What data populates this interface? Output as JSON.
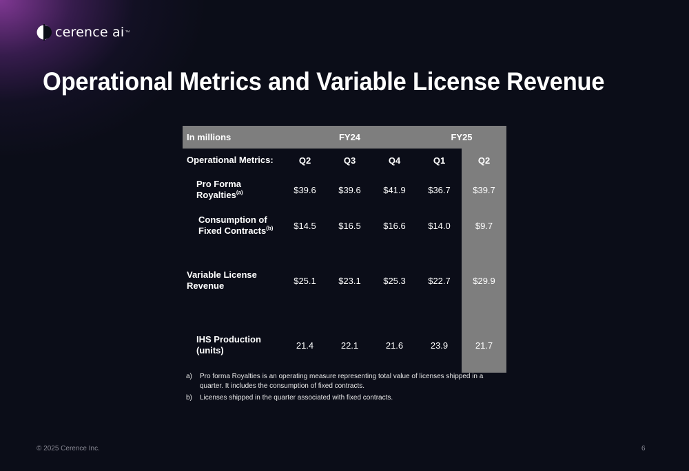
{
  "brand": {
    "name": "cerence ai",
    "tm": "™"
  },
  "title": "Operational Metrics and Variable License Revenue",
  "table": {
    "header": {
      "lead": "In millions",
      "fy24": "FY24",
      "fy25": "FY25"
    },
    "subheader": {
      "label": "Operational Metrics:",
      "cols": [
        "Q2",
        "Q3",
        "Q4",
        "Q1",
        "Q2"
      ]
    },
    "rows": [
      {
        "label_line1": "Pro Forma",
        "label_line2": "Royalties",
        "note": "(a)",
        "values": [
          "$39.6",
          "$39.6",
          "$41.9",
          "$36.7",
          "$39.7"
        ]
      },
      {
        "label_line1": "Consumption of",
        "label_line2": "Fixed Contracts",
        "note": "(b)",
        "values": [
          "$14.5",
          "$16.5",
          "$16.6",
          "$14.0",
          "$9.7"
        ]
      },
      {
        "label_line1": "Variable License",
        "label_line2": "Revenue",
        "note": "",
        "values": [
          "$25.1",
          "$23.1",
          "$25.3",
          "$22.7",
          "$29.9"
        ]
      },
      {
        "label_line1": "IHS Production",
        "label_line2": "(units)",
        "note": "",
        "values": [
          "21.4",
          "22.1",
          "21.6",
          "23.9",
          "21.7"
        ]
      }
    ]
  },
  "notes": [
    {
      "mark": "a)",
      "text": "Pro forma Royalties is an operating measure representing total value of licenses shipped in a quarter. It includes the consumption of fixed contracts."
    },
    {
      "mark": "b)",
      "text": "Licenses shipped in the quarter associated with fixed contracts."
    }
  ],
  "footer": {
    "copyright": "© 2025 Cerence Inc.",
    "page": "6"
  },
  "colors": {
    "background": "#0b0d18",
    "highlight": "#7e7e7e",
    "glow": "#8c3ca0"
  }
}
